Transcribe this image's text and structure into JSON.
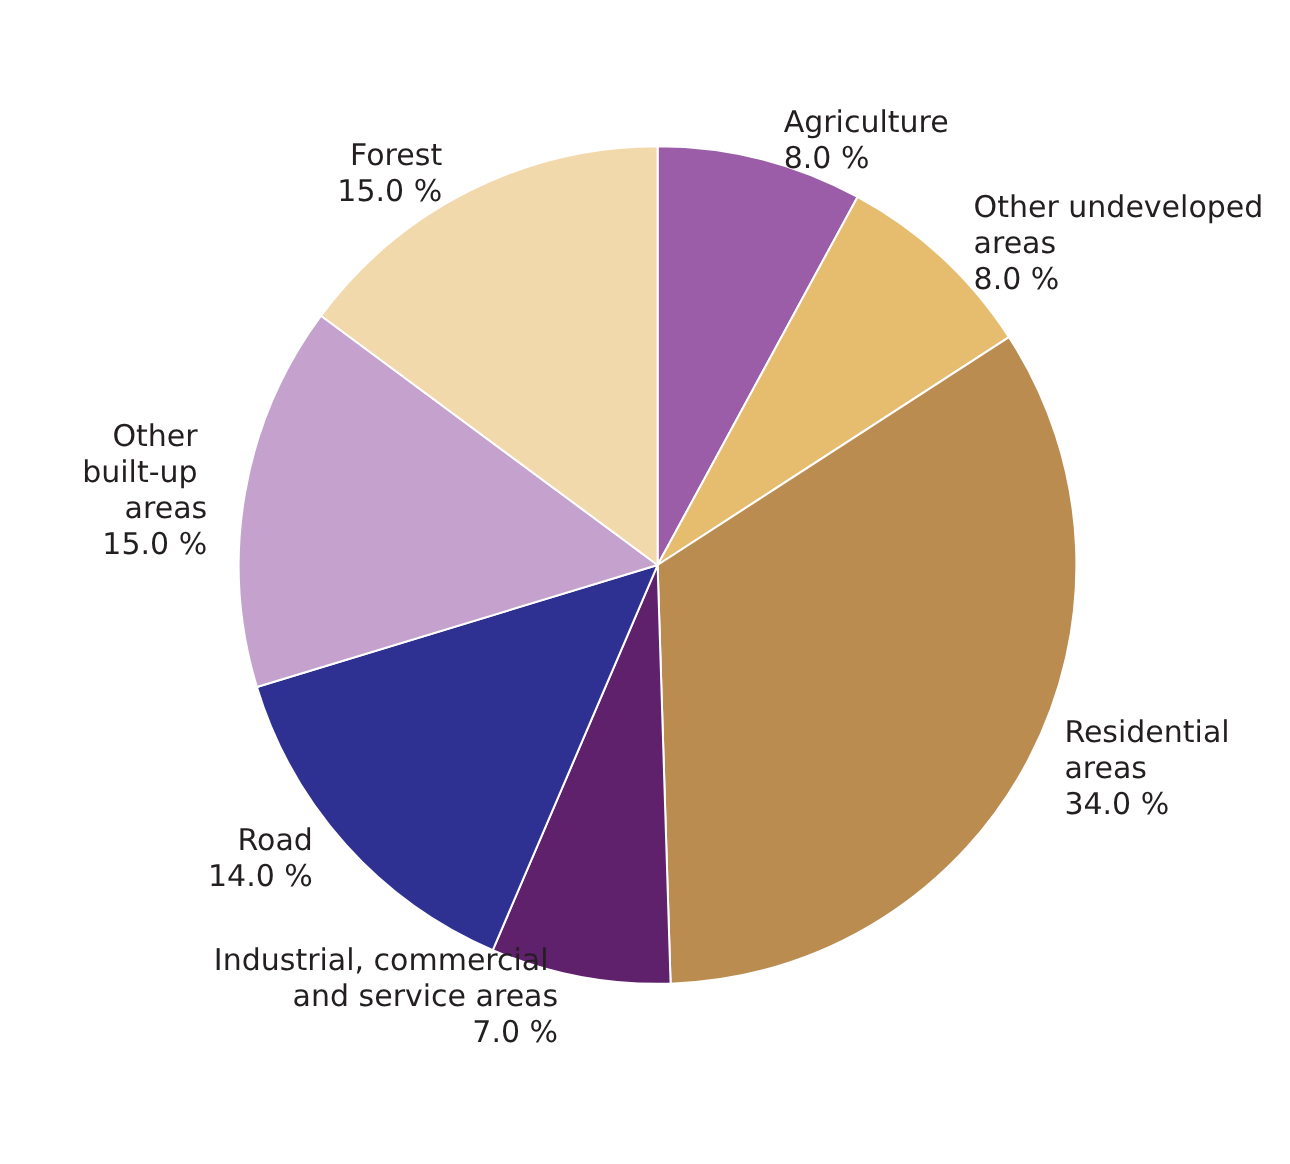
{
  "chart_data": {
    "type": "pie",
    "categories": [
      "Agriculture",
      "Other undeveloped areas",
      "Residential areas",
      "Industrial, commercial and service areas",
      "Road",
      "Other built-up areas",
      "Forest"
    ],
    "values": [
      8,
      8,
      34,
      7,
      14,
      15,
      15
    ],
    "value_labels": [
      "8.0 %",
      "8.0 %",
      "34.0 %",
      "7.0 %",
      "14.0 %",
      "15.0 %",
      "15.0 %"
    ],
    "colors": [
      "#9b5ca8",
      "#e6bd6f",
      "#bb8c50",
      "#5f216c",
      "#2e3192",
      "#c4a2cd",
      "#f1d9ac"
    ],
    "legend": false
  }
}
